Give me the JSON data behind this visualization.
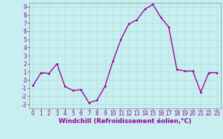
{
  "x": [
    0,
    1,
    2,
    3,
    4,
    5,
    6,
    7,
    8,
    9,
    10,
    11,
    12,
    13,
    14,
    15,
    16,
    17,
    18,
    19,
    20,
    21,
    22,
    23
  ],
  "y": [
    -0.7,
    0.9,
    0.8,
    2.0,
    -0.8,
    -1.3,
    -1.2,
    -2.8,
    -2.5,
    -0.8,
    2.3,
    5.0,
    6.9,
    7.4,
    8.7,
    9.3,
    7.7,
    6.5,
    1.3,
    1.1,
    1.1,
    -1.5,
    0.9,
    0.9
  ],
  "xlim": [
    -0.5,
    23.5
  ],
  "ylim": [
    -3.5,
    9.5
  ],
  "yticks": [
    -3,
    -2,
    -1,
    0,
    1,
    2,
    3,
    4,
    5,
    6,
    7,
    8,
    9
  ],
  "xticks": [
    0,
    1,
    2,
    3,
    4,
    5,
    6,
    7,
    8,
    9,
    10,
    11,
    12,
    13,
    14,
    15,
    16,
    17,
    18,
    19,
    20,
    21,
    22,
    23
  ],
  "line_color": "#990099",
  "marker": "s",
  "markersize": 2.0,
  "linewidth": 1.0,
  "xlabel": "Windchill (Refroidissement éolien,°C)",
  "background_color": "#c8eef0",
  "grid_color": "#aadddd",
  "tick_color": "#990099",
  "label_color": "#990099",
  "xlabel_fontsize": 6.5,
  "tick_fontsize": 5.5,
  "spine_color": "#888888"
}
